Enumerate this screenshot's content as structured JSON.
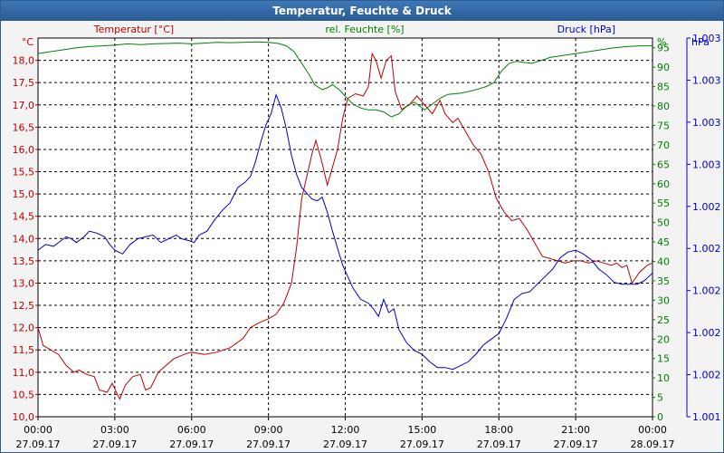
{
  "window": {
    "title": "Temperatur, Feuchte & Druck"
  },
  "colors": {
    "temperature": "#c00000",
    "humidity": "#008000",
    "pressure": "#0000c8",
    "grid": "#000000",
    "bg": "#ffffff"
  },
  "chart_data": {
    "type": "line",
    "title": "Temperatur, Feuchte & Druck",
    "grid": true,
    "x_ticks": [
      {
        "h": 0,
        "time": "00:00",
        "date": "27.09.17"
      },
      {
        "h": 3,
        "time": "03:00",
        "date": "27.09.17"
      },
      {
        "h": 6,
        "time": "06:00",
        "date": "27.09.17"
      },
      {
        "h": 9,
        "time": "09:00",
        "date": "27.09.17"
      },
      {
        "h": 12,
        "time": "12:00",
        "date": "27.09.17"
      },
      {
        "h": 15,
        "time": "15:00",
        "date": "27.09.17"
      },
      {
        "h": 18,
        "time": "18:00",
        "date": "27.09.17"
      },
      {
        "h": 21,
        "time": "21:00",
        "date": "27.09.17"
      },
      {
        "h": 24,
        "time": "00:00",
        "date": "28.09.17"
      }
    ],
    "xlim": [
      0,
      24
    ],
    "axes": {
      "temperature": {
        "label": "Temperatur [°C]",
        "unit": "°C",
        "ylim": [
          10.0,
          18.5
        ],
        "ticks": [
          "10,0",
          "10,5",
          "11,0",
          "11,5",
          "12,0",
          "12,5",
          "13,0",
          "13,5",
          "14,0",
          "14,5",
          "15,0",
          "15,5",
          "16,0",
          "16,5",
          "17,0",
          "17,5",
          "18,0"
        ]
      },
      "humidity": {
        "label": "rel. Feuchte [%]",
        "unit": "%",
        "ylim": [
          0,
          97.5
        ],
        "ticks": [
          "0",
          "5",
          "10",
          "15",
          "20",
          "25",
          "30",
          "35",
          "40",
          "45",
          "50",
          "55",
          "60",
          "65",
          "70",
          "75",
          "80",
          "85",
          "90",
          "95"
        ]
      },
      "pressure": {
        "label": "Druck [hPa]",
        "unit": "hPa",
        "ylim": [
          1.001,
          1.003
        ],
        "ticks": [
          "1.001",
          "1.002",
          "1.002",
          "1.002",
          "1.002",
          "1.002",
          "1.003",
          "1.003",
          "1.003",
          "1.003"
        ]
      }
    },
    "series": [
      {
        "name": "Temperatur",
        "axis": "temperature",
        "points": [
          [
            0,
            12.0
          ],
          [
            0.2,
            11.6
          ],
          [
            0.5,
            11.5
          ],
          [
            0.8,
            11.4
          ],
          [
            1.1,
            11.15
          ],
          [
            1.4,
            11.0
          ],
          [
            1.6,
            11.05
          ],
          [
            1.9,
            10.95
          ],
          [
            2.2,
            10.9
          ],
          [
            2.4,
            10.6
          ],
          [
            2.7,
            10.55
          ],
          [
            2.9,
            10.75
          ],
          [
            3.1,
            10.5
          ],
          [
            3.2,
            10.4
          ],
          [
            3.4,
            10.7
          ],
          [
            3.7,
            10.9
          ],
          [
            4.0,
            10.95
          ],
          [
            4.2,
            10.6
          ],
          [
            4.4,
            10.65
          ],
          [
            4.7,
            11.0
          ],
          [
            5.0,
            11.15
          ],
          [
            5.3,
            11.3
          ],
          [
            5.7,
            11.4
          ],
          [
            6.0,
            11.45
          ],
          [
            6.5,
            11.4
          ],
          [
            7.0,
            11.45
          ],
          [
            7.5,
            11.55
          ],
          [
            8.0,
            11.75
          ],
          [
            8.3,
            12.0
          ],
          [
            8.6,
            12.1
          ],
          [
            9.0,
            12.2
          ],
          [
            9.3,
            12.3
          ],
          [
            9.6,
            12.55
          ],
          [
            9.9,
            13.0
          ],
          [
            10.1,
            13.8
          ],
          [
            10.3,
            14.9
          ],
          [
            10.5,
            15.4
          ],
          [
            10.7,
            15.9
          ],
          [
            10.85,
            16.2
          ],
          [
            11.05,
            15.8
          ],
          [
            11.3,
            15.2
          ],
          [
            11.5,
            15.6
          ],
          [
            11.7,
            16.0
          ],
          [
            11.9,
            16.7
          ],
          [
            12.1,
            17.15
          ],
          [
            12.4,
            17.25
          ],
          [
            12.7,
            17.2
          ],
          [
            12.9,
            17.4
          ],
          [
            13.05,
            18.15
          ],
          [
            13.2,
            18.0
          ],
          [
            13.4,
            17.6
          ],
          [
            13.6,
            18.0
          ],
          [
            13.8,
            18.1
          ],
          [
            13.95,
            17.3
          ],
          [
            14.2,
            16.9
          ],
          [
            14.5,
            17.0
          ],
          [
            14.8,
            17.2
          ],
          [
            15.1,
            17.0
          ],
          [
            15.4,
            16.8
          ],
          [
            15.7,
            17.1
          ],
          [
            15.9,
            16.8
          ],
          [
            16.2,
            16.6
          ],
          [
            16.4,
            16.7
          ],
          [
            16.7,
            16.4
          ],
          [
            17.0,
            16.1
          ],
          [
            17.3,
            15.9
          ],
          [
            17.6,
            15.5
          ],
          [
            17.9,
            14.9
          ],
          [
            18.2,
            14.6
          ],
          [
            18.5,
            14.4
          ],
          [
            18.8,
            14.45
          ],
          [
            19.1,
            14.2
          ],
          [
            19.4,
            13.9
          ],
          [
            19.7,
            13.6
          ],
          [
            20.0,
            13.55
          ],
          [
            20.3,
            13.5
          ],
          [
            20.6,
            13.45
          ],
          [
            20.9,
            13.5
          ],
          [
            21.2,
            13.5
          ],
          [
            21.5,
            13.45
          ],
          [
            21.8,
            13.5
          ],
          [
            22.1,
            13.45
          ],
          [
            22.4,
            13.4
          ],
          [
            22.6,
            13.45
          ],
          [
            22.8,
            13.35
          ],
          [
            23.0,
            13.4
          ],
          [
            23.2,
            13.0
          ],
          [
            23.5,
            13.25
          ],
          [
            23.8,
            13.4
          ],
          [
            24.0,
            13.45
          ]
        ]
      },
      {
        "name": "rel. Feuchte",
        "axis": "humidity",
        "points": [
          [
            0,
            93.5
          ],
          [
            0.5,
            94
          ],
          [
            1.0,
            94.5
          ],
          [
            1.5,
            95
          ],
          [
            2.0,
            95.3
          ],
          [
            2.5,
            95.5
          ],
          [
            3.0,
            95.7
          ],
          [
            3.5,
            96
          ],
          [
            4.0,
            95.8
          ],
          [
            4.5,
            96
          ],
          [
            5.0,
            96.1
          ],
          [
            5.5,
            96.2
          ],
          [
            6.0,
            96
          ],
          [
            6.5,
            96.2
          ],
          [
            7.0,
            96.4
          ],
          [
            7.5,
            96.3
          ],
          [
            8.0,
            96.4
          ],
          [
            8.5,
            96.5
          ],
          [
            9.0,
            96.4
          ],
          [
            9.4,
            96.1
          ],
          [
            9.7,
            95.5
          ],
          [
            10.0,
            94
          ],
          [
            10.3,
            91
          ],
          [
            10.6,
            88
          ],
          [
            10.8,
            85.5
          ],
          [
            11.1,
            84.2
          ],
          [
            11.3,
            84.7
          ],
          [
            11.5,
            85.5
          ],
          [
            11.8,
            84
          ],
          [
            12.0,
            82.5
          ],
          [
            12.3,
            80.5
          ],
          [
            12.6,
            79.5
          ],
          [
            12.9,
            79
          ],
          [
            13.2,
            79
          ],
          [
            13.5,
            78.5
          ],
          [
            13.8,
            77.2
          ],
          [
            14.1,
            78
          ],
          [
            14.4,
            80
          ],
          [
            14.7,
            81
          ],
          [
            14.9,
            80
          ],
          [
            15.1,
            79
          ],
          [
            15.4,
            80.5
          ],
          [
            15.7,
            82
          ],
          [
            16.0,
            83
          ],
          [
            16.5,
            83.3
          ],
          [
            17.0,
            84
          ],
          [
            17.5,
            85
          ],
          [
            17.8,
            86
          ],
          [
            18.1,
            89
          ],
          [
            18.4,
            91
          ],
          [
            18.7,
            91.5
          ],
          [
            19.0,
            91.2
          ],
          [
            19.3,
            91
          ],
          [
            19.6,
            91.6
          ],
          [
            20.0,
            92.5
          ],
          [
            20.5,
            93
          ],
          [
            21.0,
            93.5
          ],
          [
            21.5,
            94
          ],
          [
            22.0,
            94.5
          ],
          [
            22.5,
            95
          ],
          [
            23.0,
            95.3
          ],
          [
            23.5,
            95.5
          ],
          [
            24.0,
            95.5
          ]
        ]
      },
      {
        "name": "Druck",
        "axis": "pressure",
        "points": [
          [
            0,
            1.00188
          ],
          [
            0.3,
            1.00191
          ],
          [
            0.6,
            1.0019
          ],
          [
            0.9,
            1.00193
          ],
          [
            1.1,
            1.00195
          ],
          [
            1.3,
            1.00194
          ],
          [
            1.5,
            1.00192
          ],
          [
            1.8,
            1.00195
          ],
          [
            2.0,
            1.00198
          ],
          [
            2.3,
            1.00197
          ],
          [
            2.6,
            1.00195
          ],
          [
            2.8,
            1.00191
          ],
          [
            3.0,
            1.00188
          ],
          [
            3.3,
            1.00186
          ],
          [
            3.6,
            1.00191
          ],
          [
            3.9,
            1.00194
          ],
          [
            4.2,
            1.00195
          ],
          [
            4.5,
            1.00196
          ],
          [
            4.8,
            1.00192
          ],
          [
            5.1,
            1.00194
          ],
          [
            5.4,
            1.00196
          ],
          [
            5.6,
            1.00194
          ],
          [
            5.9,
            1.00193
          ],
          [
            6.1,
            1.00192
          ],
          [
            6.3,
            1.00196
          ],
          [
            6.6,
            1.00198
          ],
          [
            6.9,
            1.00204
          ],
          [
            7.2,
            1.00209
          ],
          [
            7.5,
            1.00213
          ],
          [
            7.8,
            1.00221
          ],
          [
            8.1,
            1.00224
          ],
          [
            8.3,
            1.00227
          ],
          [
            8.5,
            1.00235
          ],
          [
            8.7,
            1.00245
          ],
          [
            8.9,
            1.00254
          ],
          [
            9.1,
            1.0026
          ],
          [
            9.3,
            1.0027
          ],
          [
            9.5,
            1.00263
          ],
          [
            9.7,
            1.00252
          ],
          [
            9.9,
            1.00238
          ],
          [
            10.1,
            1.00228
          ],
          [
            10.3,
            1.00221
          ],
          [
            10.5,
            1.00218
          ],
          [
            10.7,
            1.00215
          ],
          [
            10.9,
            1.00214
          ],
          [
            11.1,
            1.00216
          ],
          [
            11.3,
            1.00208
          ],
          [
            11.5,
            1.00198
          ],
          [
            11.7,
            1.00189
          ],
          [
            11.9,
            1.0018
          ],
          [
            12.1,
            1.00174
          ],
          [
            12.3,
            1.00168
          ],
          [
            12.6,
            1.00162
          ],
          [
            12.9,
            1.0016
          ],
          [
            13.1,
            1.00157
          ],
          [
            13.3,
            1.00153
          ],
          [
            13.5,
            1.00162
          ],
          [
            13.7,
            1.00155
          ],
          [
            13.9,
            1.00157
          ],
          [
            14.1,
            1.00146
          ],
          [
            14.4,
            1.00139
          ],
          [
            14.7,
            1.00135
          ],
          [
            15.0,
            1.00133
          ],
          [
            15.3,
            1.00129
          ],
          [
            15.6,
            1.00126
          ],
          [
            15.9,
            1.00126
          ],
          [
            16.2,
            1.00125
          ],
          [
            16.5,
            1.00127
          ],
          [
            16.8,
            1.00129
          ],
          [
            17.1,
            1.00133
          ],
          [
            17.4,
            1.00138
          ],
          [
            17.7,
            1.00141
          ],
          [
            18.0,
            1.00144
          ],
          [
            18.3,
            1.00152
          ],
          [
            18.6,
            1.00162
          ],
          [
            18.9,
            1.00165
          ],
          [
            19.2,
            1.00166
          ],
          [
            19.5,
            1.0017
          ],
          [
            19.8,
            1.00174
          ],
          [
            20.1,
            1.00178
          ],
          [
            20.4,
            1.00184
          ],
          [
            20.7,
            1.00187
          ],
          [
            21.0,
            1.00188
          ],
          [
            21.3,
            1.00186
          ],
          [
            21.6,
            1.00183
          ],
          [
            21.9,
            1.00178
          ],
          [
            22.2,
            1.00175
          ],
          [
            22.5,
            1.00171
          ],
          [
            22.8,
            1.0017
          ],
          [
            23.1,
            1.0017
          ],
          [
            23.4,
            1.0017
          ],
          [
            23.7,
            1.00172
          ],
          [
            24.0,
            1.00176
          ]
        ]
      }
    ]
  }
}
